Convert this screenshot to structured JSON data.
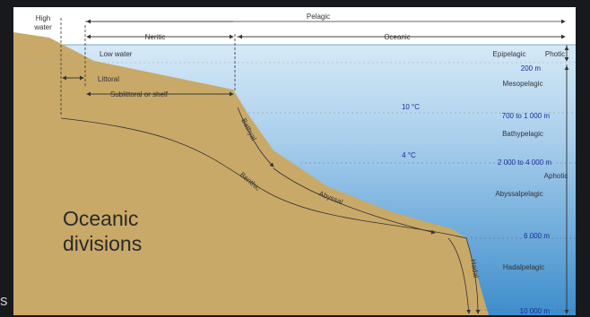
{
  "labels": {
    "high_water": [
      "High",
      "water"
    ],
    "pelagic": "Pelagic",
    "neritic": "Neritic",
    "oceanic": "Oceanic",
    "low_water": "Low water",
    "littoral": "Littoral",
    "sublittoral": "Sublittoral or shelf",
    "bathyal": "Bathyal",
    "benthic": "Benthic",
    "abyssal": "Abyssal",
    "hadal": "Hadal",
    "epipelagic": "Epipelagic",
    "mesopelagic": "Mesopelagic",
    "bathypelagic": "Bathypelagic",
    "abyssalpelagic": "Abyssalpelagic",
    "hadalpelagic": "Hadalpelagic",
    "photic": "Photic",
    "aphotic": "Aphotic",
    "depth_200": "200 m",
    "depth_700_1000": "700 to 1 000 m",
    "depth_2000_4000": "2 000 to 4 000 m",
    "depth_6000": "6 000 m",
    "depth_10000": "10 000 m",
    "temp_10": "10 °C",
    "temp_4": "4 °C",
    "title_line1": "Oceanic",
    "title_line2": "divisions"
  },
  "corner_glyph": "s",
  "colors": {
    "land": "#c9a968",
    "water_top": "#d6e9f7",
    "water_bottom": "#3d8dcb",
    "depth_text": "#1b2b9b",
    "background": "#17191c"
  }
}
